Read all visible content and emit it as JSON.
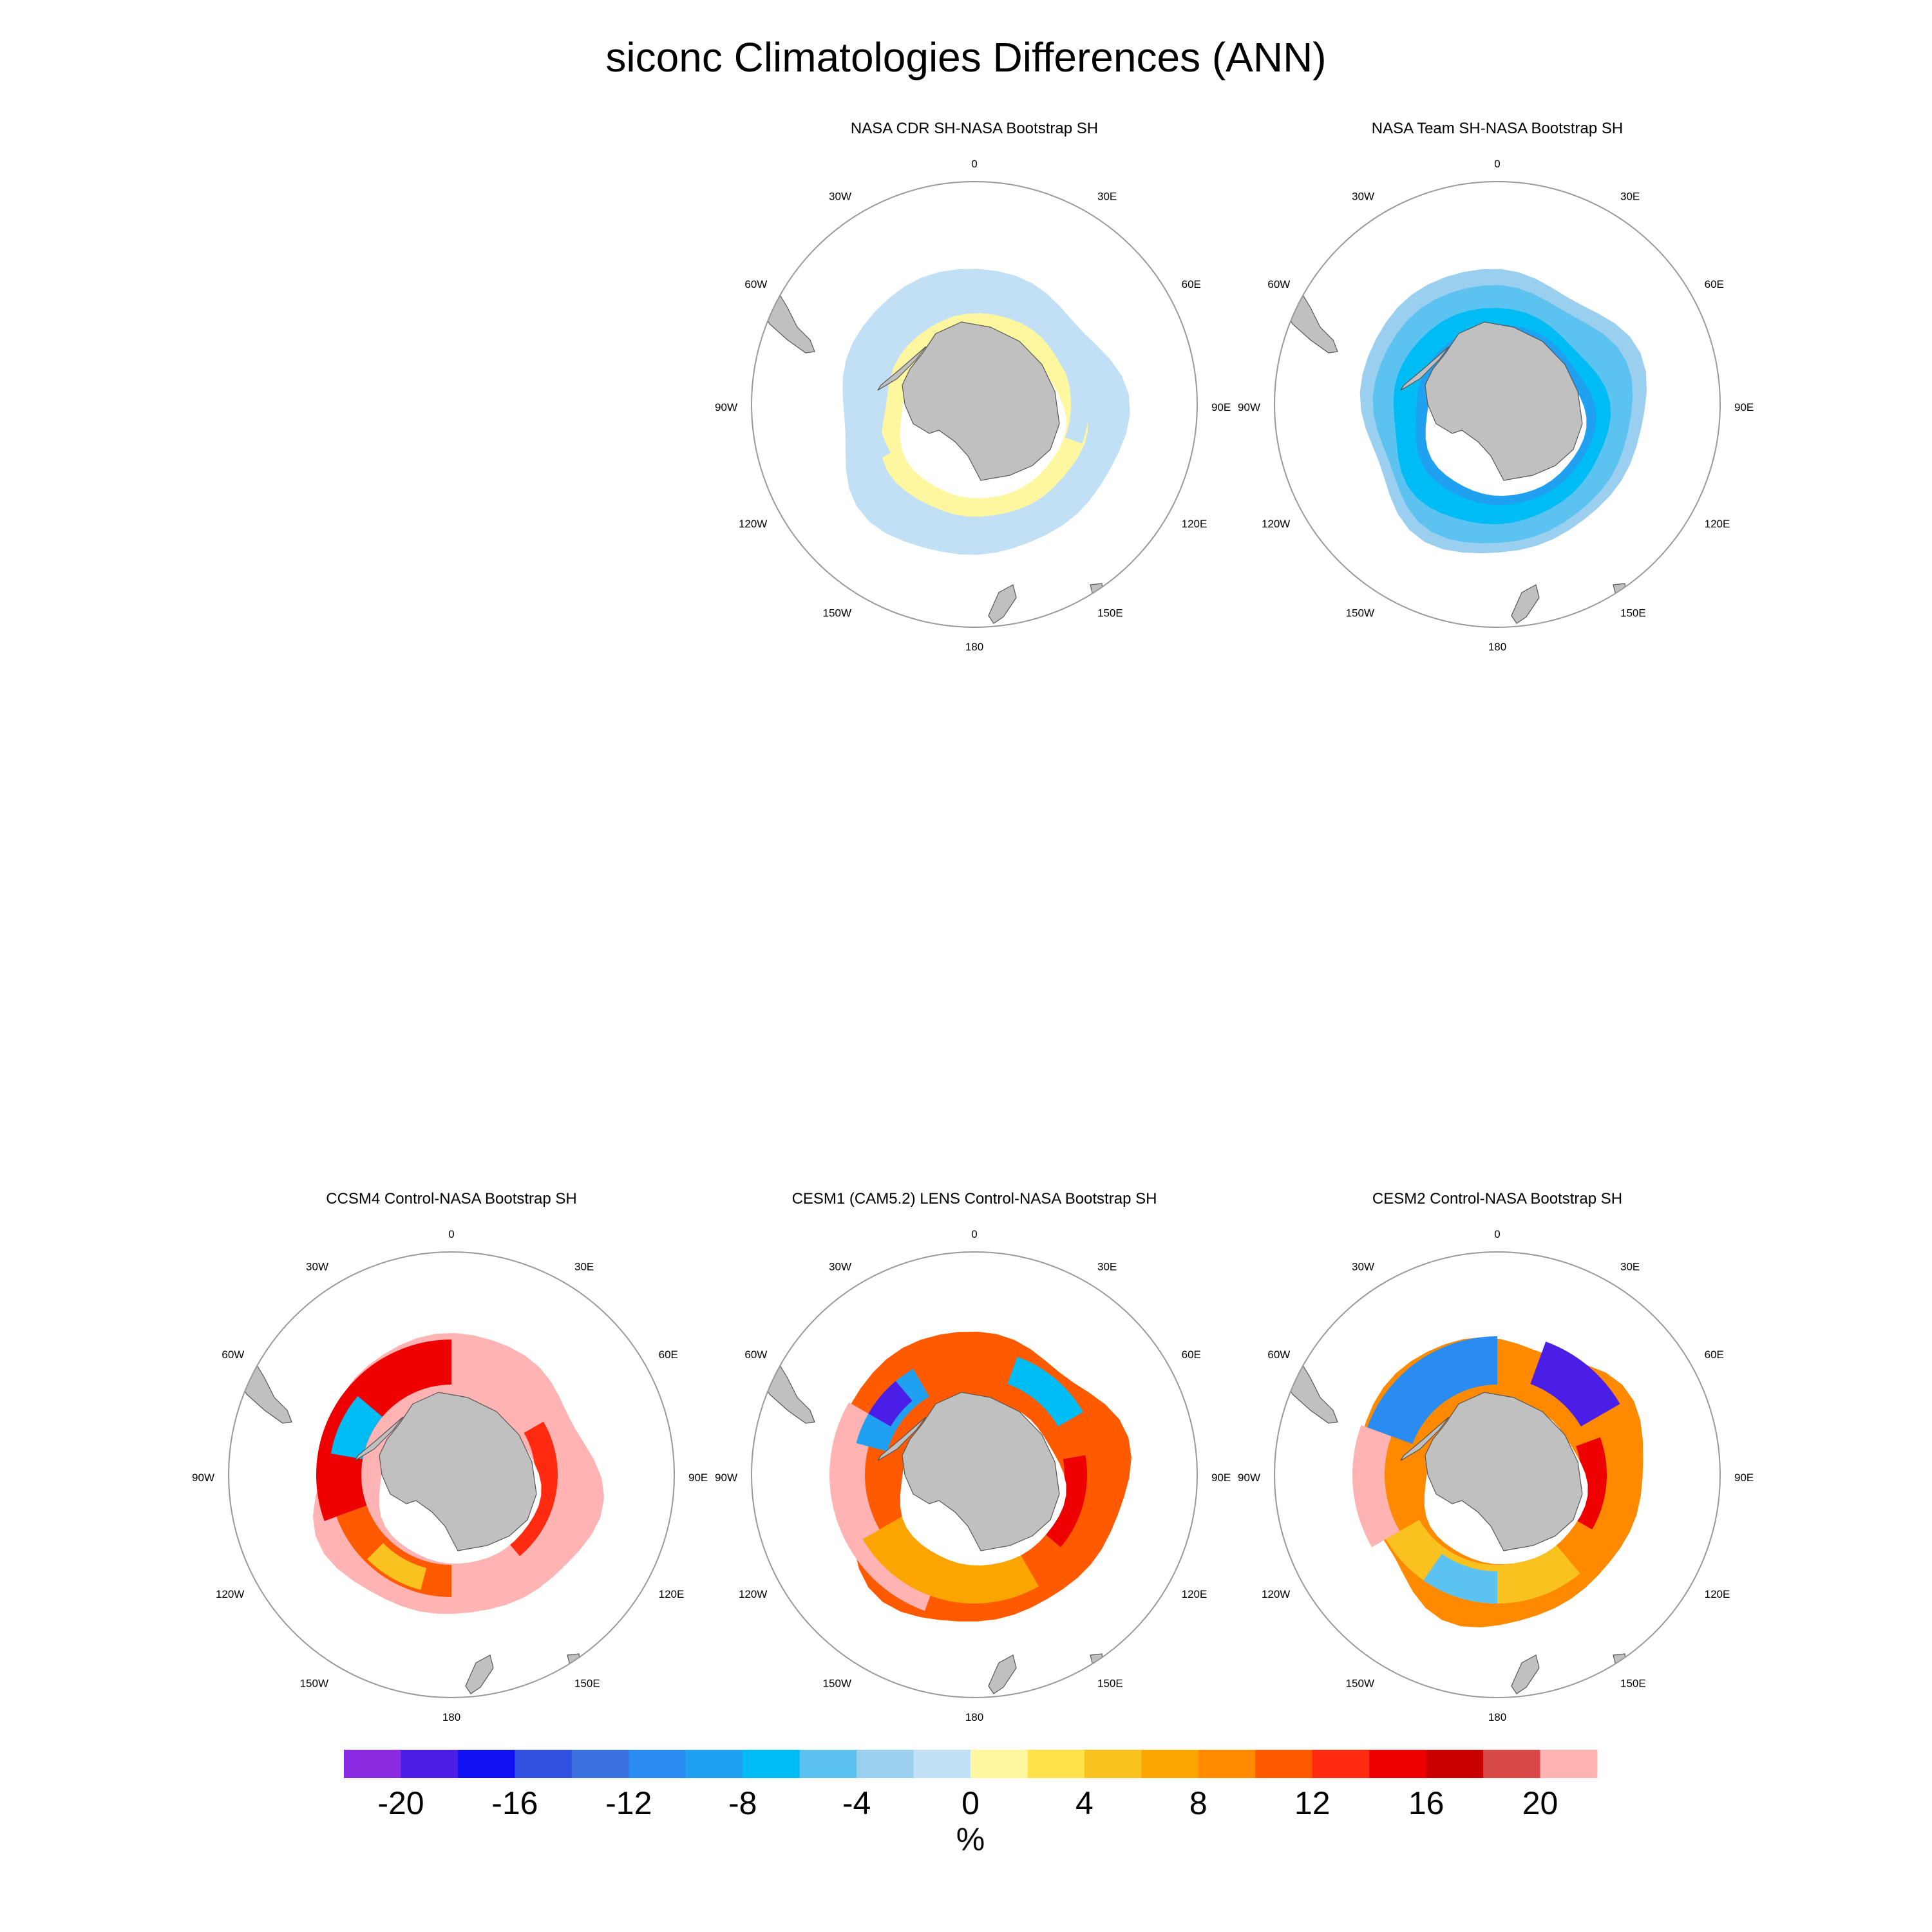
{
  "figure": {
    "title": "siconc Climatologies Differences (ANN)"
  },
  "panels": [
    {
      "id": "cdr",
      "title": "NASA CDR SH-NASA Bootstrap SH",
      "pattern": "obs-mixed"
    },
    {
      "id": "team",
      "title": "NASA Team SH-NASA Bootstrap SH",
      "pattern": "obs-negative"
    },
    {
      "id": "ccsm4",
      "title": "CCSM4 Control-NASA Bootstrap SH",
      "pattern": "model-high"
    },
    {
      "id": "cesm1",
      "title": "CESM1 (CAM5.2) LENS Control-NASA Bootstrap SH",
      "pattern": "model-mixed"
    },
    {
      "id": "cesm2",
      "title": "CESM2 Control-NASA Bootstrap SH",
      "pattern": "model-dipole"
    }
  ],
  "lon_labels": [
    "0",
    "30E",
    "60E",
    "90E",
    "120E",
    "150E",
    "180",
    "150W",
    "120W",
    "90W",
    "60W",
    "30W"
  ],
  "colorbar": {
    "unit": "%",
    "tick_labels": [
      "-20",
      "-16",
      "-12",
      "-8",
      "-4",
      "0",
      "4",
      "8",
      "12",
      "16",
      "20"
    ],
    "colors": [
      "#8a2be2",
      "#4b1ee8",
      "#1010f0",
      "#3050e0",
      "#3a6fe0",
      "#2a8cf0",
      "#1fa0f0",
      "#00bcf5",
      "#5cc3f0",
      "#9bcff0",
      "#c2e0f5",
      "#fff7a0",
      "#ffe24a",
      "#f9c21e",
      "#fca500",
      "#ff8a00",
      "#ff5a00",
      "#ff2a10",
      "#ef0000",
      "#c80000",
      "#d84848",
      "#ffb3b3"
    ]
  },
  "chart_data": {
    "type": "heatmap",
    "title": "siconc Climatologies Differences (ANN)",
    "projection": "South Polar Stereographic",
    "variable": "siconc",
    "unit": "%",
    "levels": [
      -20,
      -16,
      -12,
      -8,
      -4,
      0,
      4,
      8,
      12,
      16,
      20
    ],
    "panels": [
      "NASA CDR SH-NASA Bootstrap SH",
      "NASA Team SH-NASA Bootstrap SH",
      "CCSM4 Control-NASA Bootstrap SH",
      "CESM1 (CAM5.2) LENS Control-NASA Bootstrap SH",
      "CESM2 Control-NASA Bootstrap SH"
    ]
  }
}
